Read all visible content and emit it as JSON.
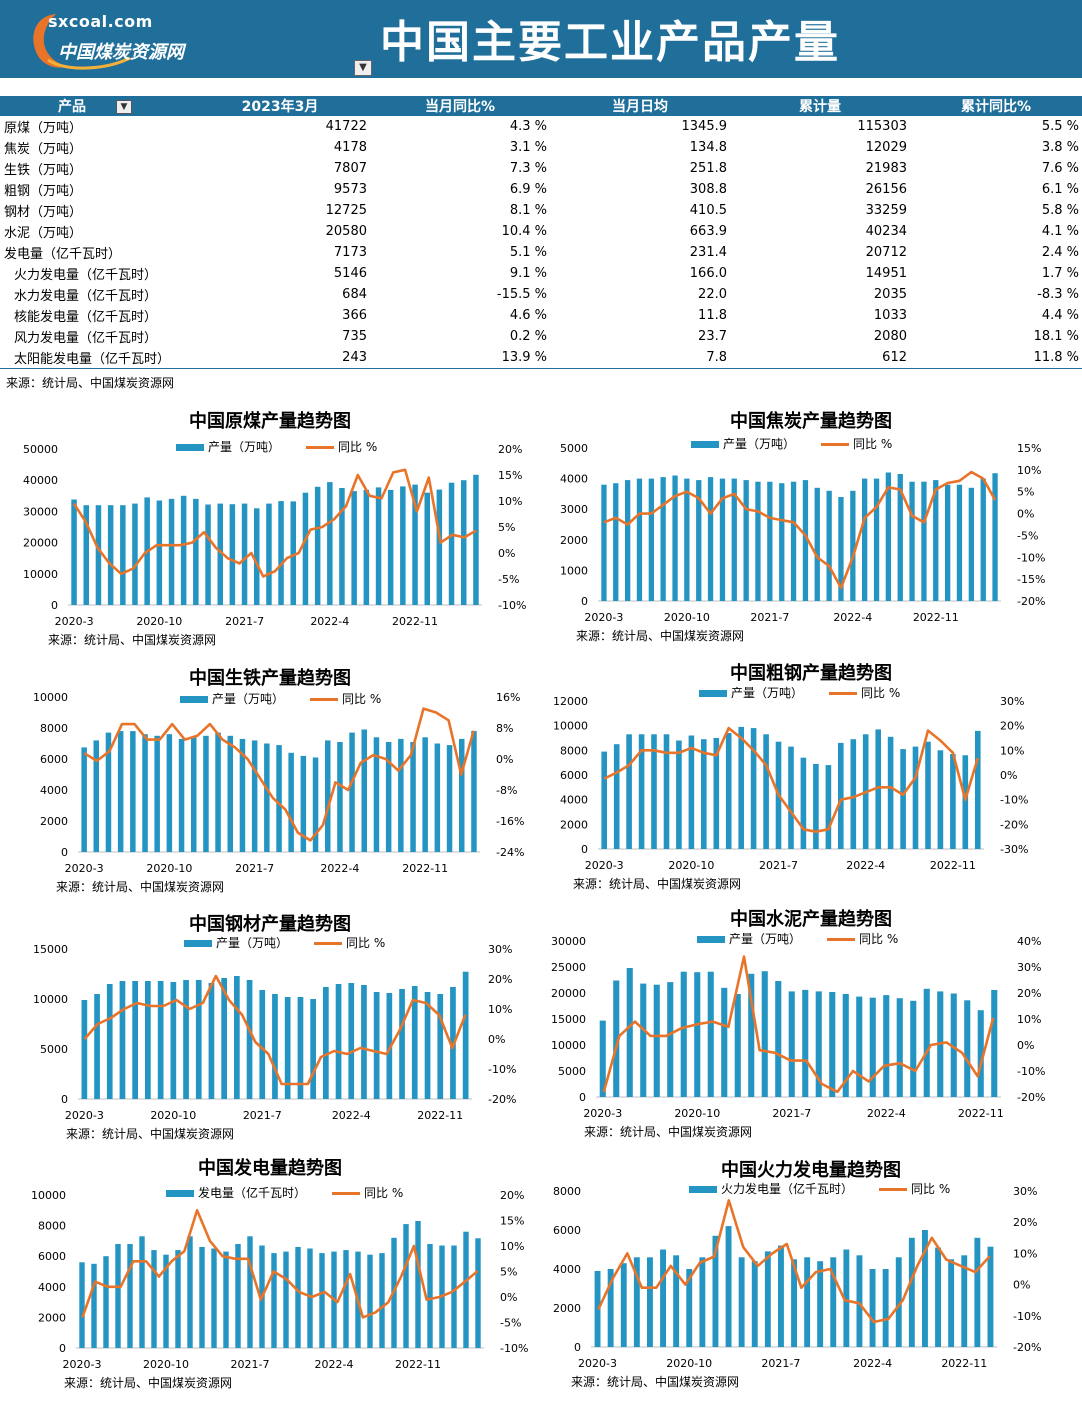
{
  "header": {
    "logo_site": "sxcoal.com",
    "logo_name": "中国煤炭资源网",
    "title": "中国主要工业产品产量",
    "brand_color": "#1f6f9a"
  },
  "table": {
    "headers": [
      "产品",
      "2023年3月",
      "当月同比%",
      "当月日均",
      "累计量",
      "累计同比%"
    ],
    "rows": [
      {
        "name": "原煤（万吨）",
        "month": "41722",
        "yoy": "4.3 %",
        "daily": "1345.9",
        "cum": "115303",
        "cum_yoy": "5.5 %"
      },
      {
        "name": "焦炭（万吨）",
        "month": "4178",
        "yoy": "3.1 %",
        "daily": "134.8",
        "cum": "12029",
        "cum_yoy": "3.8 %"
      },
      {
        "name": "生铁（万吨）",
        "month": "7807",
        "yoy": "7.3 %",
        "daily": "251.8",
        "cum": "21983",
        "cum_yoy": "7.6 %"
      },
      {
        "name": "粗钢（万吨）",
        "month": "9573",
        "yoy": "6.9 %",
        "daily": "308.8",
        "cum": "26156",
        "cum_yoy": "6.1 %"
      },
      {
        "name": "钢材（万吨）",
        "month": "12725",
        "yoy": "8.1 %",
        "daily": "410.5",
        "cum": "33259",
        "cum_yoy": "5.8 %"
      },
      {
        "name": "水泥（万吨）",
        "month": "20580",
        "yoy": "10.4 %",
        "daily": "663.9",
        "cum": "40234",
        "cum_yoy": "4.1 %"
      },
      {
        "name": "发电量（亿千瓦时）",
        "month": "7173",
        "yoy": "5.1 %",
        "daily": "231.4",
        "cum": "20712",
        "cum_yoy": "2.4 %"
      },
      {
        "name": "火力发电量（亿千瓦时）",
        "month": "5146",
        "yoy": "9.1 %",
        "daily": "166.0",
        "cum": "14951",
        "cum_yoy": "1.7 %",
        "sub": true
      },
      {
        "name": "水力发电量（亿千瓦时）",
        "month": "684",
        "yoy": "-15.5 %",
        "daily": "22.0",
        "cum": "2035",
        "cum_yoy": "-8.3 %",
        "sub": true
      },
      {
        "name": "核能发电量（亿千瓦时）",
        "month": "366",
        "yoy": "4.6 %",
        "daily": "11.8",
        "cum": "1033",
        "cum_yoy": "4.4 %",
        "sub": true
      },
      {
        "name": "风力发电量（亿千瓦时）",
        "month": "735",
        "yoy": "0.2 %",
        "daily": "23.7",
        "cum": "2080",
        "cum_yoy": "18.1 %",
        "sub": true
      },
      {
        "name": "太阳能发电量（亿千瓦时）",
        "month": "243",
        "yoy": "13.9 %",
        "daily": "7.8",
        "cum": "612",
        "cum_yoy": "11.8 %",
        "sub": true
      }
    ],
    "source": "来源：统计局、中国煤炭资源网"
  },
  "chart_data": [
    {
      "id": "coal",
      "type": "bar+line",
      "title": "中国原煤产量趋势图",
      "bar_name": "产量（万吨）",
      "line_name": "同比 %",
      "source": "来源：统计局、中国煤炭资源网",
      "bar_color": "#2495c2",
      "line_color": "#e8742a",
      "x_ticks": [
        "2020-3",
        "2020-10",
        "2021-7",
        "2022-4",
        "2022-11"
      ],
      "y_left": {
        "min": 0,
        "max": 50000,
        "step": 10000,
        "labels": [
          "0",
          "10000",
          "20000",
          "30000",
          "40000",
          "50000"
        ]
      },
      "y_right": {
        "min": -10,
        "max": 20,
        "step": 5,
        "labels": [
          "-10%",
          "-5%",
          "0%",
          "5%",
          "10%",
          "15%",
          "20%"
        ]
      },
      "bars": [
        33800,
        32000,
        32000,
        32000,
        32000,
        32500,
        34500,
        33500,
        34000,
        35000,
        34000,
        32200,
        32500,
        32300,
        32500,
        31000,
        32500,
        33300,
        33200,
        36000,
        37900,
        39400,
        37500,
        36500,
        36900,
        37700,
        36900,
        38000,
        38600,
        36000,
        37000,
        39200,
        40000,
        41722
      ],
      "line": [
        9.5,
        6,
        1,
        -2,
        -4,
        -3,
        0,
        1.5,
        1.5,
        1.5,
        2,
        4,
        1,
        -1,
        -2,
        0,
        -4.5,
        -3.5,
        -1,
        0,
        4.5,
        5,
        6.5,
        9,
        15,
        11,
        10.5,
        15.5,
        16,
        8,
        14.5,
        2,
        3.5,
        3,
        4.3
      ]
    },
    {
      "id": "coke",
      "type": "bar+line",
      "title": "中国焦炭产量趋势图",
      "bar_name": "产量（万吨）",
      "line_name": "同比 %",
      "source": "来源：统计局、中国煤炭资源网",
      "bar_color": "#2495c2",
      "line_color": "#e8742a",
      "x_ticks": [
        "2020-3",
        "2020-10",
        "2021-7",
        "2022-4",
        "2022-11"
      ],
      "y_left": {
        "min": 0,
        "max": 5000,
        "step": 1000,
        "labels": [
          "0",
          "1000",
          "2000",
          "3000",
          "4000",
          "5000"
        ]
      },
      "y_right": {
        "min": -20,
        "max": 15,
        "step": 5,
        "labels": [
          "-20%",
          "-15%",
          "-10%",
          "-5%",
          "0%",
          "5%",
          "10%",
          "15%"
        ]
      },
      "bars": [
        3800,
        3850,
        3950,
        4000,
        4000,
        4050,
        4100,
        4000,
        3950,
        4050,
        4000,
        4000,
        3950,
        3900,
        3900,
        3850,
        3900,
        3950,
        3700,
        3600,
        3400,
        3600,
        4000,
        4000,
        4200,
        4150,
        3900,
        3900,
        3950,
        3800,
        3800,
        3700,
        4000,
        4178
      ],
      "line": [
        -2,
        -1,
        -2.5,
        0,
        0,
        2,
        4,
        5,
        3.5,
        0,
        3.5,
        4.5,
        1,
        0.5,
        -1,
        -1.5,
        -2,
        -5,
        -10,
        -12,
        -17,
        -10,
        -1,
        1.5,
        6,
        5.5,
        -0.5,
        -2,
        5.5,
        7,
        7.5,
        9.5,
        8,
        3.1
      ]
    },
    {
      "id": "iron",
      "type": "bar+line",
      "title": "中国生铁产量趋势图",
      "bar_name": "产量（万吨）",
      "line_name": "同比 %",
      "source": "来源：统计局、中国煤炭资源网",
      "bar_color": "#2495c2",
      "line_color": "#e8742a",
      "x_ticks": [
        "2020-3",
        "2020-10",
        "2021-7",
        "2022-4",
        "2022-11"
      ],
      "y_left": {
        "min": 0,
        "max": 10000,
        "step": 2000,
        "labels": [
          "0",
          "2000",
          "4000",
          "6000",
          "8000",
          "10000"
        ]
      },
      "y_right": {
        "min": -24,
        "max": 16,
        "step": 8,
        "labels": [
          "-24%",
          "-16%",
          "-8%",
          "0%",
          "8%",
          "16%"
        ]
      },
      "bars": [
        6750,
        7200,
        7700,
        7800,
        7800,
        7600,
        7500,
        7600,
        7300,
        7400,
        7500,
        7700,
        7500,
        7300,
        7200,
        7000,
        6900,
        6400,
        6200,
        6100,
        7200,
        7100,
        7700,
        7900,
        7400,
        7100,
        7300,
        7100,
        7400,
        7000,
        6900,
        7300,
        7807
      ],
      "line": [
        1.5,
        -0.5,
        2,
        9,
        9,
        5,
        5,
        9,
        5,
        6,
        9,
        5,
        3,
        0,
        -5,
        -10,
        -13,
        -19,
        -21,
        -17,
        -6,
        -8,
        -1,
        1,
        0,
        -3,
        1,
        13,
        12,
        10,
        -4,
        7.3
      ]
    },
    {
      "id": "steel",
      "type": "bar+line",
      "title": "中国粗钢产量趋势图",
      "bar_name": "产量（万吨）",
      "line_name": "同比 %",
      "source": "来源：统计局、中国煤炭资源网",
      "bar_color": "#2495c2",
      "line_color": "#e8742a",
      "x_ticks": [
        "2020-3",
        "2020-10",
        "2021-7",
        "2022-4",
        "2022-11"
      ],
      "y_left": {
        "min": 0,
        "max": 12000,
        "step": 2000,
        "labels": [
          "0",
          "2000",
          "4000",
          "6000",
          "8000",
          "10000",
          "12000"
        ]
      },
      "y_right": {
        "min": -30,
        "max": 30,
        "step": 10,
        "labels": [
          "-30%",
          "-20%",
          "-10%",
          "0%",
          "10%",
          "20%",
          "30%"
        ]
      },
      "bars": [
        7900,
        8500,
        9300,
        9300,
        9300,
        9300,
        8800,
        9200,
        8900,
        9000,
        9400,
        9900,
        9800,
        9300,
        8700,
        8300,
        7400,
        6900,
        6800,
        8600,
        8900,
        9300,
        9700,
        9100,
        8100,
        8300,
        8700,
        8000,
        7700,
        7600,
        9573
      ],
      "line": [
        -1.5,
        1,
        4,
        10,
        10,
        9,
        9,
        11,
        9,
        8,
        19,
        15,
        10,
        4,
        -8,
        -15,
        -22,
        -23,
        -22,
        -10,
        -9,
        -7,
        -5,
        -5,
        -8,
        -1,
        18,
        14,
        9,
        -10,
        6.9
      ]
    },
    {
      "id": "products",
      "type": "bar+line",
      "title": "中国钢材产量趋势图",
      "bar_name": "产量（万吨）",
      "line_name": "同比 %",
      "source": "来源：统计局、中国煤炭资源网",
      "bar_color": "#2495c2",
      "line_color": "#e8742a",
      "x_ticks": [
        "2020-3",
        "2020-10",
        "2021-7",
        "2022-4",
        "2022-11"
      ],
      "y_left": {
        "min": 0,
        "max": 15000,
        "step": 5000,
        "labels": [
          "0",
          "5000",
          "10000",
          "15000"
        ]
      },
      "y_right": {
        "min": -20,
        "max": 30,
        "step": 10,
        "labels": [
          "-20%",
          "-10%",
          "0%",
          "10%",
          "20%",
          "30%"
        ]
      },
      "bars": [
        9900,
        10500,
        11500,
        11800,
        11800,
        11800,
        11800,
        11700,
        11900,
        11900,
        11600,
        12100,
        12300,
        11900,
        10900,
        10500,
        10200,
        10200,
        10000,
        11200,
        11500,
        11600,
        11400,
        10700,
        10600,
        11000,
        11300,
        10700,
        10500,
        11200,
        12725
      ],
      "line": [
        0,
        5,
        7,
        10,
        12,
        11,
        11,
        13,
        10,
        12,
        21,
        13,
        8,
        -1,
        -5,
        -15,
        -15,
        -15,
        -6,
        -4,
        -5,
        -3,
        -4,
        -5,
        3,
        13,
        12,
        8,
        -3,
        8.1
      ]
    },
    {
      "id": "cement",
      "type": "bar+line",
      "title": "中国水泥产量趋势图",
      "bar_name": "产量（万吨）",
      "line_name": "同比 %",
      "source": "来源：统计局、中国煤炭资源网",
      "bar_color": "#2495c2",
      "line_color": "#e8742a",
      "x_ticks": [
        "2020-3",
        "2020-10",
        "2021-7",
        "2022-4",
        "2022-11"
      ],
      "y_left": {
        "min": 0,
        "max": 30000,
        "step": 5000,
        "labels": [
          "0",
          "5000",
          "10000",
          "15000",
          "20000",
          "25000",
          "30000"
        ]
      },
      "y_right": {
        "min": -20,
        "max": 40,
        "step": 10,
        "labels": [
          "-20%",
          "-10%",
          "0%",
          "10%",
          "20%",
          "30%",
          "40%"
        ]
      },
      "bars": [
        14700,
        22400,
        24800,
        21800,
        21600,
        22100,
        24100,
        24000,
        24100,
        21000,
        19800,
        23700,
        24200,
        22300,
        20300,
        20600,
        20300,
        20200,
        19800,
        19300,
        19100,
        19600,
        19000,
        18500,
        20800,
        20300,
        19900,
        18600,
        16700,
        20580
      ],
      "line": [
        -18,
        3.5,
        9,
        3.5,
        3.5,
        6.5,
        8,
        9,
        7,
        34,
        -2,
        -3,
        -6,
        -6,
        -15,
        -18,
        -10,
        -14,
        -8,
        -7,
        -10,
        0,
        1,
        -3,
        -12,
        10.4
      ]
    },
    {
      "id": "power",
      "type": "bar+line",
      "title": "中国发电量趋势图",
      "bar_name": "发电量（亿千瓦时）",
      "line_name": "同比 %",
      "source": "来源：统计局、中国煤炭资源网",
      "bar_color": "#2495c2",
      "line_color": "#e8742a",
      "x_ticks": [
        "2020-3",
        "2020-10",
        "2021-7",
        "2022-4",
        "2022-11"
      ],
      "y_left": {
        "min": 0,
        "max": 10000,
        "step": 2000,
        "labels": [
          "0",
          "2000",
          "4000",
          "6000",
          "8000",
          "10000"
        ]
      },
      "y_right": {
        "min": -10,
        "max": 20,
        "step": 5,
        "labels": [
          "-10%",
          "-5%",
          "0%",
          "5%",
          "10%",
          "15%",
          "20%"
        ]
      },
      "bars": [
        5600,
        5500,
        6000,
        6800,
        6800,
        7300,
        6400,
        6100,
        6400,
        7300,
        6600,
        6500,
        6300,
        6800,
        7300,
        6700,
        6200,
        6300,
        6600,
        6500,
        6200,
        6300,
        6400,
        6300,
        6100,
        6200,
        7200,
        8100,
        8300,
        6800,
        6700,
        6700,
        7600,
        7173
      ],
      "line": [
        -4,
        3,
        2,
        2,
        7,
        7,
        4,
        7,
        9,
        17,
        11,
        8,
        7.5,
        7.5,
        -0.5,
        5,
        3.5,
        1,
        0,
        1,
        -1,
        4.5,
        -4,
        -3,
        -1,
        4,
        10,
        -0.5,
        0,
        1,
        3,
        5.1
      ]
    },
    {
      "id": "thermal",
      "type": "bar+line",
      "title": "中国火力发电量趋势图",
      "bar_name": "火力发电量（亿千瓦时）",
      "line_name": "同比 %",
      "source": "来源：统计局、中国煤炭资源网",
      "bar_color": "#2495c2",
      "line_color": "#e8742a",
      "x_ticks": [
        "2020-3",
        "2020-10",
        "2021-7",
        "2022-4",
        "2022-11"
      ],
      "y_left": {
        "min": 0,
        "max": 8000,
        "step": 2000,
        "labels": [
          "0",
          "2000",
          "4000",
          "6000",
          "8000"
        ]
      },
      "y_right": {
        "min": -20,
        "max": 30,
        "step": 10,
        "labels": [
          "-20%",
          "-10%",
          "0%",
          "10%",
          "20%",
          "30%"
        ]
      },
      "bars": [
        3900,
        4000,
        4300,
        4600,
        4600,
        5000,
        4700,
        4000,
        4600,
        5700,
        6200,
        4600,
        4400,
        4900,
        5200,
        4500,
        4600,
        4400,
        4600,
        5000,
        4700,
        4000,
        4000,
        4600,
        5600,
        6000,
        5100,
        4500,
        4700,
        5600,
        5146
      ],
      "line": [
        -8,
        2,
        10,
        -1,
        -1,
        6,
        0,
        7,
        9,
        27,
        12,
        6,
        10,
        13,
        -1,
        4,
        5,
        -5,
        -6,
        -12,
        -11,
        -5,
        6,
        15,
        8,
        6,
        4,
        9.1
      ]
    }
  ]
}
